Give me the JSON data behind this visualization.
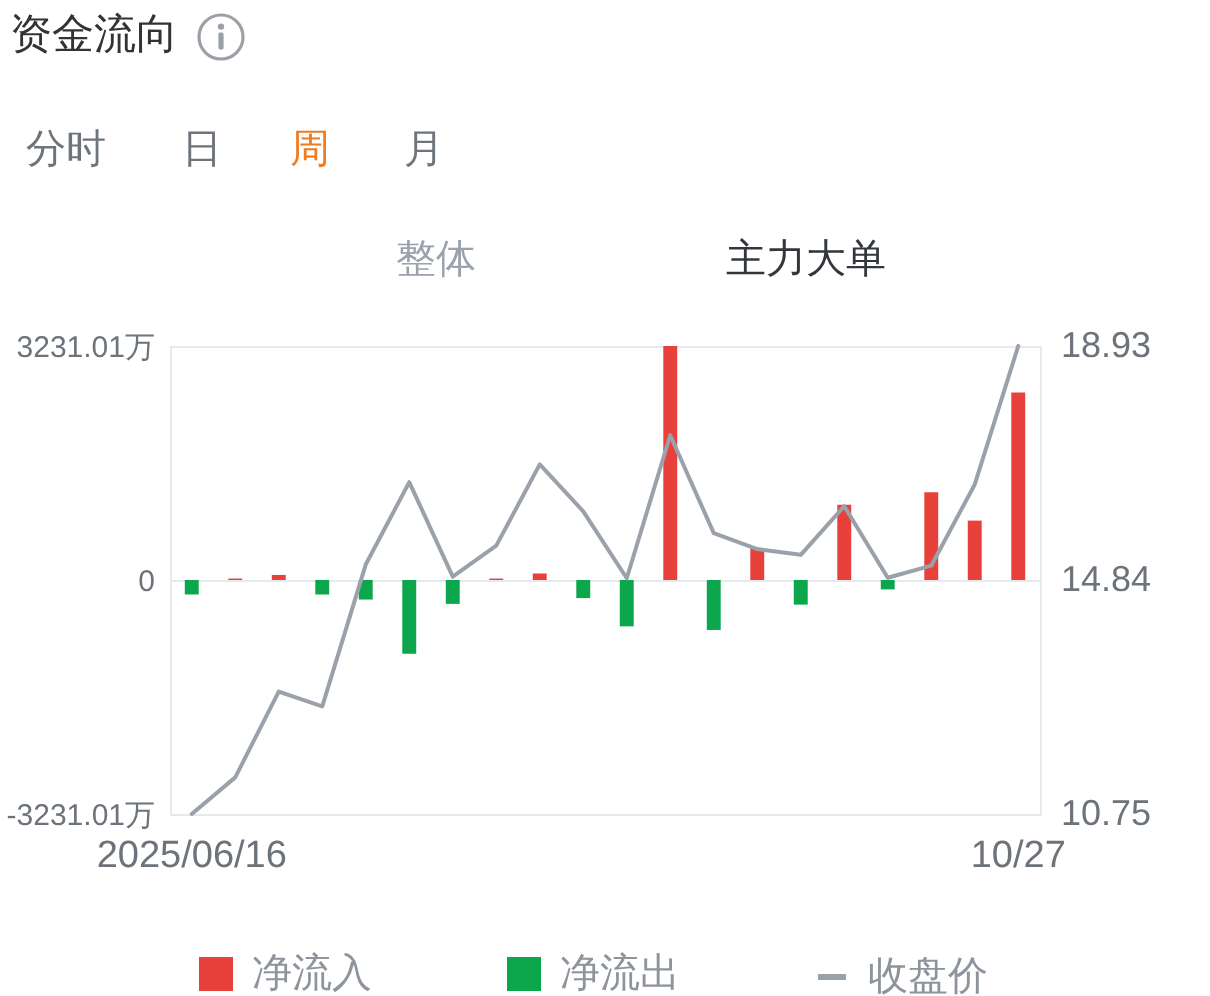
{
  "chart_data": {
    "type": "bar",
    "title": "资金流向",
    "annotations": [
      "分时",
      "日",
      "周",
      "月",
      "整体",
      "主力大单"
    ],
    "categories": [
      "2025/06/16",
      null,
      null,
      null,
      null,
      null,
      null,
      null,
      null,
      null,
      null,
      null,
      null,
      null,
      null,
      null,
      null,
      null,
      null,
      "10/27"
    ],
    "series": [
      {
        "name": "净流入",
        "color": "#e8413c",
        "values": [
          null,
          20,
          70,
          null,
          null,
          null,
          null,
          20,
          90,
          null,
          null,
          3231.01,
          null,
          440,
          null,
          1040,
          null,
          1210,
          820,
          2590
        ]
      },
      {
        "name": "净流出",
        "color": "#0ca64c",
        "values": [
          -200,
          null,
          null,
          -200,
          -270,
          -1020,
          -330,
          null,
          null,
          -250,
          -640,
          null,
          -690,
          null,
          -340,
          null,
          -130,
          null,
          null,
          null
        ]
      },
      {
        "name": "收盘价",
        "type": "line",
        "axis": "y2",
        "color": "#9ba1aa",
        "values": [
          10.75,
          11.39,
          12.89,
          12.63,
          15.11,
          16.55,
          14.9,
          15.44,
          16.86,
          16.04,
          14.87,
          17.37,
          15.66,
          15.38,
          15.28,
          16.13,
          14.88,
          15.09,
          16.51,
          18.93
        ]
      }
    ],
    "stacked": true,
    "ylim": [
      -3231.01,
      3231.01
    ],
    "yticks": [
      {
        "value": -3231.01,
        "label": "-3231.01万"
      },
      0,
      {
        "value": 3231.01,
        "label": "3231.01万"
      }
    ],
    "y2lim": [
      10.75,
      18.93
    ],
    "y2ticks": [
      10.75,
      14.84,
      18.93
    ],
    "grid": "y",
    "legend": "bottom"
  }
}
